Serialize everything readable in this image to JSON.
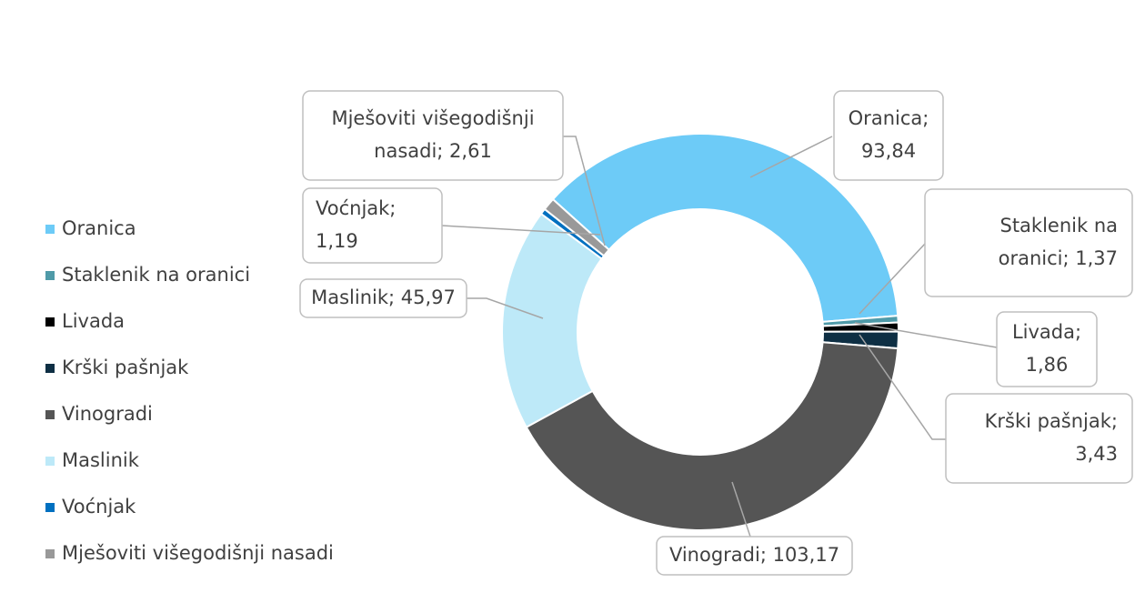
{
  "chart_data": {
    "type": "donut",
    "categories": [
      "Oranica",
      "Staklenik na oranici",
      "Livada",
      "Krški pašnjak",
      "Vinogradi",
      "Maslinik",
      "Voćnjak",
      "Mješoviti višegodišnji nasadi"
    ],
    "values": [
      93.84,
      1.37,
      1.86,
      3.43,
      103.17,
      45.97,
      1.19,
      2.61
    ],
    "value_labels": [
      "Oranica; 93,84",
      "Staklenik na oranici; 1,37",
      "Livada; 1,86",
      "Krški pašnjak; 3,43",
      "Vinogradi; 103,17",
      "Maslinik; 45,97",
      "Voćnjak; 1,19",
      "Mješoviti višegodišnji nasadi; 2,61"
    ],
    "colors": [
      "#6dcbf7",
      "#4f9aa8",
      "#000000",
      "#0e2f44",
      "#555555",
      "#bde9f8",
      "#0070c0",
      "#999999"
    ],
    "legend": "left"
  }
}
